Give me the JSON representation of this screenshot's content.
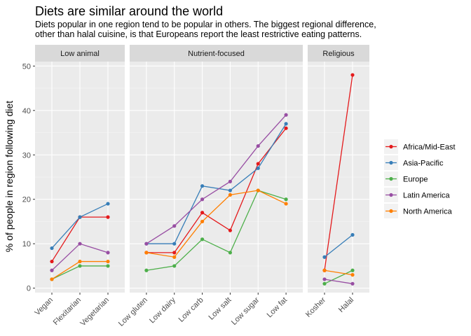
{
  "chart_data": {
    "type": "line",
    "title": "Diets are similar around the world",
    "subtitle_lines": [
      "Diets popular in one region tend to be popular in others. The biggest regional difference,",
      "other than halal cuisine, is that Europeans report the least restrictive eating patterns."
    ],
    "xlabel": "",
    "ylabel": "% of people in region following diet",
    "ylim": [
      -1,
      51
    ],
    "yticks": [
      0,
      10,
      20,
      30,
      40,
      50
    ],
    "grid": true,
    "legend_position": "right",
    "panels": [
      {
        "name": "Low animal",
        "categories": [
          "Vegan",
          "Flexitarian",
          "Vegetarian"
        ],
        "series": [
          {
            "name": "Africa/Mid-East",
            "values": [
              6,
              16,
              16
            ]
          },
          {
            "name": "Asia-Pacific",
            "values": [
              9,
              16,
              19
            ]
          },
          {
            "name": "Europe",
            "values": [
              2,
              5,
              5
            ]
          },
          {
            "name": "Latin America",
            "values": [
              4,
              10,
              8
            ]
          },
          {
            "name": "North America",
            "values": [
              2,
              6,
              6
            ]
          }
        ]
      },
      {
        "name": "Nutrient-focused",
        "categories": [
          "Low gluten",
          "Low dairy",
          "Low carb",
          "Low salt",
          "Low sugar",
          "Low fat"
        ],
        "series": [
          {
            "name": "Africa/Mid-East",
            "values": [
              8,
              8,
              17,
              13,
              28,
              36
            ]
          },
          {
            "name": "Asia-Pacific",
            "values": [
              10,
              10,
              23,
              22,
              27,
              37
            ]
          },
          {
            "name": "Europe",
            "values": [
              4,
              5,
              11,
              8,
              22,
              20
            ]
          },
          {
            "name": "Latin America",
            "values": [
              10,
              14,
              20,
              24,
              32,
              39
            ]
          },
          {
            "name": "North America",
            "values": [
              8,
              7,
              15,
              21,
              22,
              19
            ]
          }
        ]
      },
      {
        "name": "Religious",
        "categories": [
          "Kosher",
          "Halal"
        ],
        "series": [
          {
            "name": "Africa/Mid-East",
            "values": [
              4,
              48
            ]
          },
          {
            "name": "Asia-Pacific",
            "values": [
              7,
              12
            ]
          },
          {
            "name": "Europe",
            "values": [
              1,
              4
            ]
          },
          {
            "name": "Latin America",
            "values": [
              2,
              1
            ]
          },
          {
            "name": "North America",
            "values": [
              4,
              3
            ]
          }
        ]
      }
    ],
    "legend": [
      {
        "name": "Africa/Mid-East",
        "color": "#e41a1c"
      },
      {
        "name": "Asia-Pacific",
        "color": "#377eb8"
      },
      {
        "name": "Europe",
        "color": "#4daf4a"
      },
      {
        "name": "Latin America",
        "color": "#984ea3"
      },
      {
        "name": "North America",
        "color": "#ff7f00"
      }
    ]
  }
}
